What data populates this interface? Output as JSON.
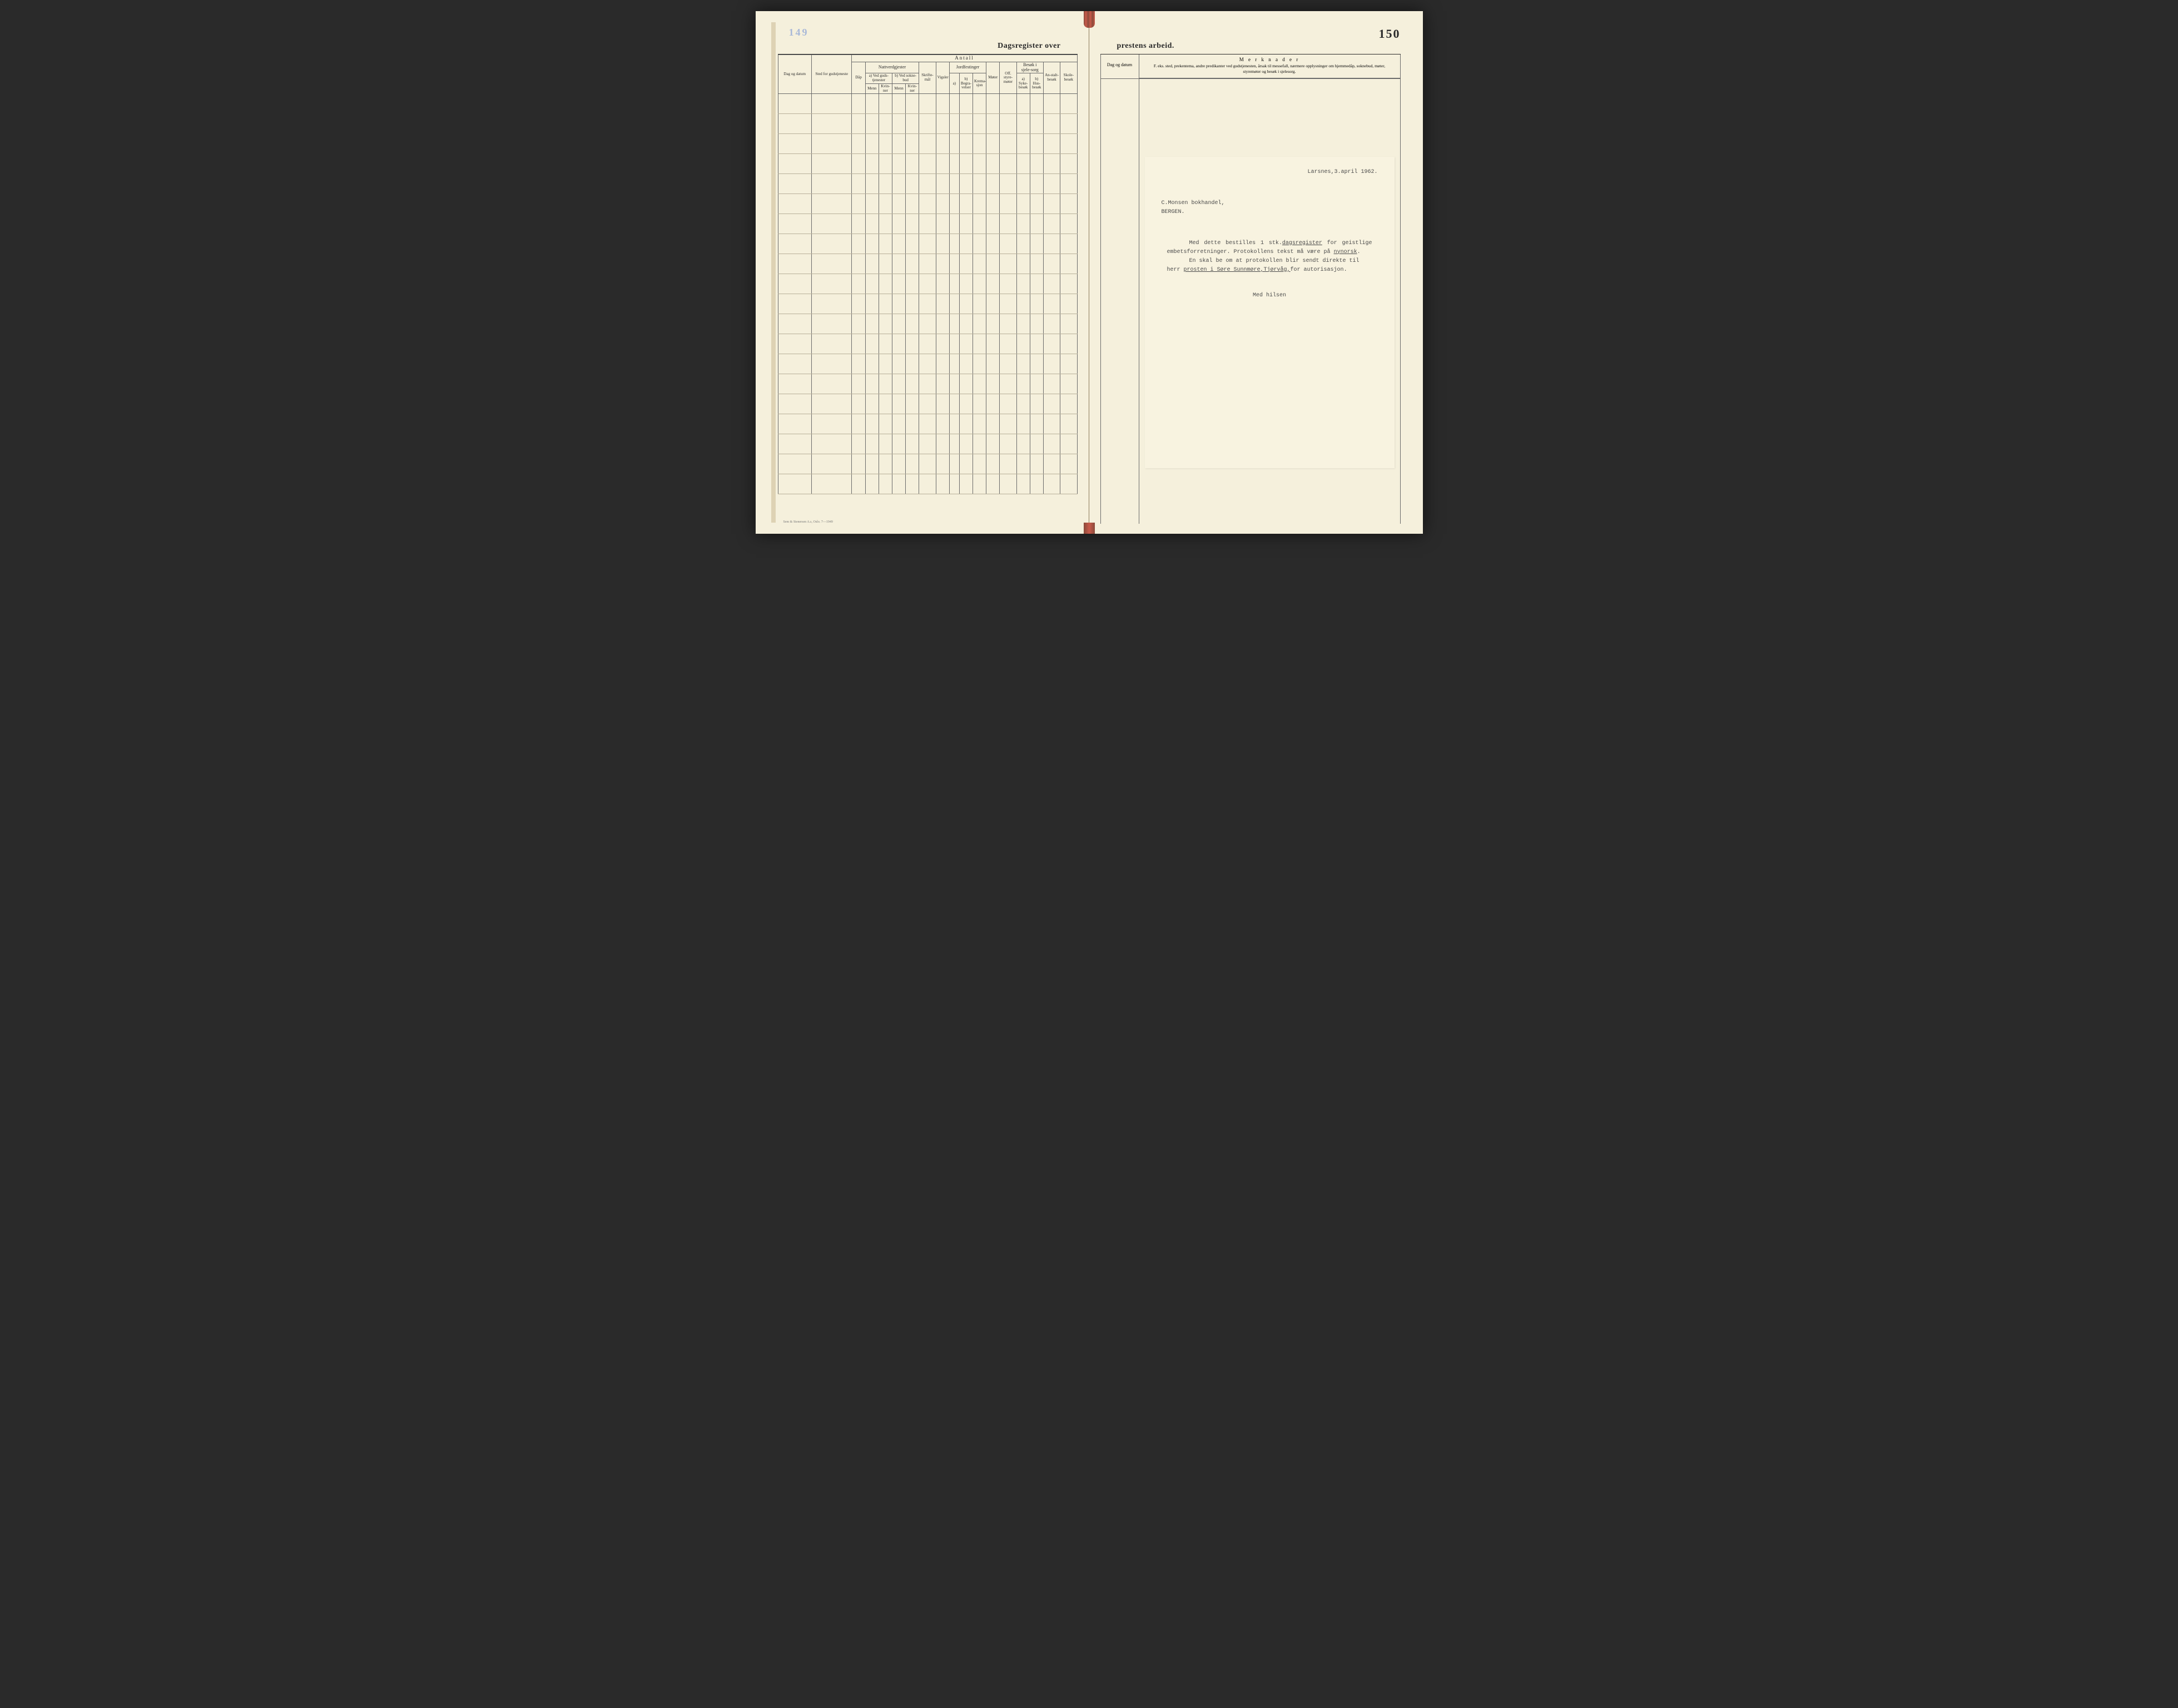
{
  "page_number_left_faded": "149",
  "page_number_right": "150",
  "title_left": "Dagsregister over",
  "title_right": "prestens arbeid.",
  "left_table": {
    "antall_label": "Antall",
    "col_dag_datum": "Dag og datum",
    "col_sted": "Sted for gudstjeneste",
    "col_dap": "Dåp",
    "nattverd_header": "Nattverdgjester",
    "nattverd_a": "a) Ved guds-tjenester",
    "nattverd_b": "b) Ved sokne-bud",
    "sub_menn": "Menn",
    "sub_kvinner": "Kvin-ner",
    "col_skrifte": "Skrifte-mål",
    "col_vigsler": "Vigsler",
    "jordfest_header": "Jordfestinger",
    "jordfest_a": "a)",
    "jordfest_b": "b) Begra-velser",
    "jordfest_c": "Krema-sjon",
    "col_moter": "Møter",
    "col_off": "Off. styre-møter",
    "sjele_header": "Besøk i sjele-sorg",
    "sjele_a": "a) Syke-besøk",
    "sjele_b": "b) Hus-besøk",
    "col_anstalt": "An-stalt-besøk",
    "col_skole": "Skole-besøk"
  },
  "right_table": {
    "col_dag_datum": "Dag og datum",
    "merknader_title": "M e r k n a d e r",
    "merknader_sub": "F. eks. sted, prekentema, andre predikanter ved gudstjenesten, årsak til messefall, nærmere opplysninger om hjemmedåp, soknebud, møter, styremøter og besøk i sjelesorg."
  },
  "letter": {
    "date": "Larsnes,3.april 1962.",
    "addr_line1": "C.Monsen bokhandel,",
    "addr_line2": "BERGEN.",
    "body_line1_a": "Med dette bestilles 1 stk.",
    "body_line1_b": "dagsregister",
    "body_line1_c": " for geistlige",
    "body_line2_a": "embetsforretninger. Protokollens tekst må være på ",
    "body_line2_b": "nynorsk",
    "body_line2_c": ".",
    "body_line3": "En skal be om at protokollen blir sendt direkte til",
    "body_line4_a": "herr ",
    "body_line4_b": "prosten i Søre Sunnmøre,Tjørvåg,",
    "body_line4_c": "for autorisasjon.",
    "sign": "Med hilsen"
  },
  "footer_imprint": "Sem & Stenersen A.s, Oslo. 7—1949",
  "colors": {
    "paper": "#f5f0dc",
    "letter_paper": "#f8f3e0",
    "ink": "#2a2a2a",
    "rule": "#6a6a6a",
    "faint_rule": "#b8b09a",
    "background": "#2a2a2a",
    "leather": "#6b4a2a",
    "spine_red": "#c85a4a"
  },
  "ledger_rows": 20
}
